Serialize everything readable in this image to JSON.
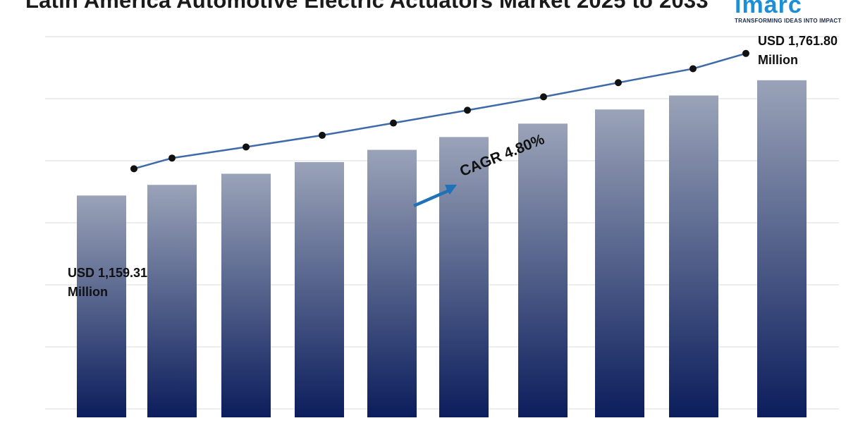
{
  "title": "Latin America Automotive Electric Actuators Market 2025 to 2033",
  "logo": {
    "word": "imarc",
    "tagline": "TRANSFORMING IDEAS INTO IMPACT"
  },
  "annotations": {
    "start_value": "USD 1,159.31",
    "start_unit": "Million",
    "end_value": "USD 1,761.80",
    "end_unit": "Million",
    "cagr": "CAGR 4.80%"
  },
  "colors": {
    "bar_top": "#9aa3b8",
    "bar_bottom": "#0b1d5c",
    "line": "#3f6aa8",
    "marker": "#111111",
    "grid": "#d9d9d9",
    "arrow": "#1f72b8"
  },
  "chart_data": {
    "type": "bar",
    "title": "Latin America Automotive Electric Actuators Market 2025 to 2033",
    "xlabel": "",
    "ylabel": "",
    "ylim": [
      0,
      2100
    ],
    "grid": true,
    "legend": "none",
    "series": [
      {
        "values": [
          1159.31,
          1215,
          1273,
          1334,
          1398,
          1465,
          1535,
          1609,
          1682,
          1761.8
        ]
      }
    ],
    "trend_line": [
      1159.31,
      1215,
      1273,
      1334,
      1398,
      1465,
      1535,
      1609,
      1682,
      1761.8
    ]
  }
}
